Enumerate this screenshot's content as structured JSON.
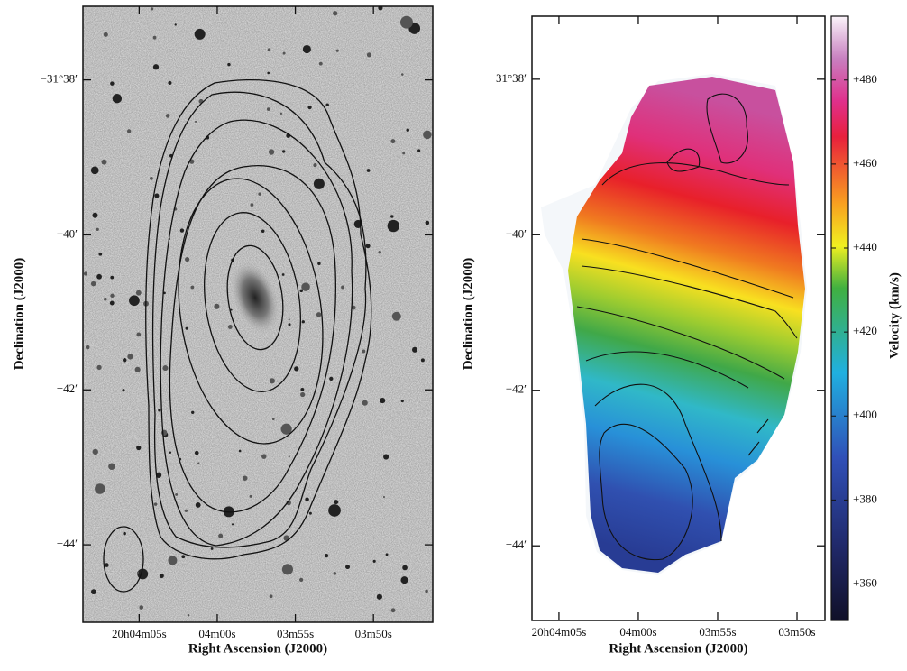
{
  "chart_data": [
    {
      "type": "contour-image",
      "xlabel": "Right Ascension (J2000)",
      "ylabel": "Declination (J2000)",
      "xlim": [
        8.6,
        -13.8
      ],
      "ylim": [
        45.0,
        37.05
      ],
      "xticks": [
        {
          "value": 5,
          "label": "20h04m05s"
        },
        {
          "value": 0,
          "label": "04m00s"
        },
        {
          "value": -5,
          "label": "03m55s"
        },
        {
          "value": -10,
          "label": "03m50s"
        }
      ],
      "yticks": [
        {
          "value": 38,
          "label": "−31°38′"
        },
        {
          "value": 40,
          "label": "−40′"
        },
        {
          "value": 42,
          "label": "−42′"
        },
        {
          "value": 44,
          "label": "−44′"
        }
      ]
    },
    {
      "type": "velocity-field",
      "xlabel": "Right Ascension (J2000)",
      "ylabel": "Declination (J2000)",
      "xlim": [
        6.7,
        -11.76
      ],
      "ylim": [
        44.96,
        37.19
      ],
      "xticks": [
        {
          "value": 5,
          "label": "20h04m05s"
        },
        {
          "value": 0,
          "label": "04m00s"
        },
        {
          "value": -5,
          "label": "03m55s"
        },
        {
          "value": -10,
          "label": "03m50s"
        }
      ],
      "yticks": [
        {
          "value": 38,
          "label": "−31°38′"
        },
        {
          "value": 40,
          "label": "−40′"
        },
        {
          "value": 42,
          "label": "−42′"
        },
        {
          "value": 44,
          "label": "−44′"
        }
      ],
      "colorbar": {
        "label": "Velocity (km/s)",
        "lim": [
          351.3,
          495.2
        ],
        "ticks": [
          {
            "value": 360,
            "label": "+360"
          },
          {
            "value": 380,
            "label": "+380"
          },
          {
            "value": 400,
            "label": "+400"
          },
          {
            "value": 420,
            "label": "+420"
          },
          {
            "value": 440,
            "label": "+440"
          },
          {
            "value": 460,
            "label": "+460"
          },
          {
            "value": 480,
            "label": "+480"
          }
        ]
      }
    }
  ]
}
